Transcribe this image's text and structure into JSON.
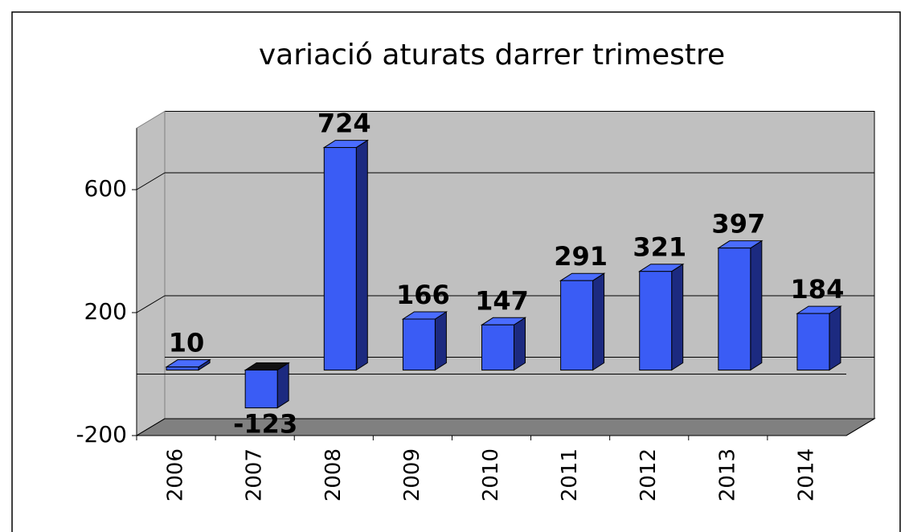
{
  "chart_data": {
    "type": "bar",
    "title": "variació aturats darrer trimestre",
    "categories": [
      "2006",
      "2007",
      "2008",
      "2009",
      "2010",
      "2011",
      "2012",
      "2013",
      "2014"
    ],
    "values": [
      10,
      -123,
      724,
      166,
      147,
      291,
      321,
      397,
      184
    ],
    "color": "#3a5cf5",
    "ylim": [
      -200,
      800
    ],
    "yticks": [
      -200,
      200,
      600
    ],
    "grid": true
  }
}
